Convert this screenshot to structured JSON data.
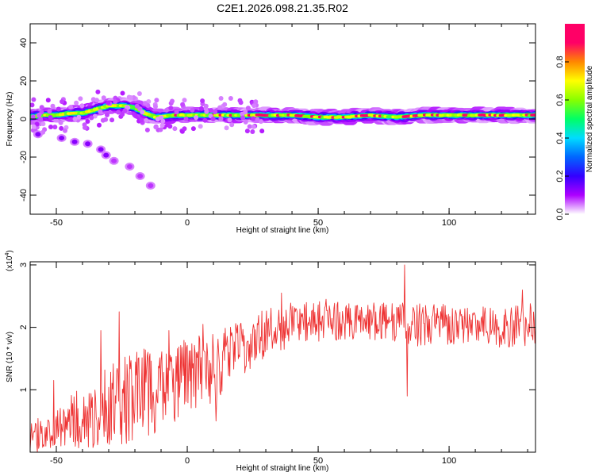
{
  "title": "C2E1.2026.098.21.35.R02",
  "chart_data": [
    {
      "type": "heatmap",
      "ylabel": "Frequency (Hz)",
      "xlabel": "Height of straight line (km)",
      "xlim": [
        -60,
        133
      ],
      "ylim": [
        -50,
        50
      ],
      "xticks": [
        -50,
        0,
        50,
        100
      ],
      "yticks": [
        40,
        20,
        0,
        -20,
        -40
      ],
      "ridge_knots": [
        [
          -60,
          1
        ],
        [
          -55,
          2
        ],
        [
          -50,
          2
        ],
        [
          -45,
          3
        ],
        [
          -40,
          3
        ],
        [
          -35,
          5
        ],
        [
          -30,
          7
        ],
        [
          -25,
          7
        ],
        [
          -20,
          6
        ],
        [
          -16,
          3
        ],
        [
          -12,
          1
        ],
        [
          -5,
          2
        ],
        [
          0,
          2
        ],
        [
          20,
          2
        ],
        [
          40,
          2
        ],
        [
          50,
          1
        ],
        [
          60,
          1
        ],
        [
          70,
          2
        ],
        [
          80,
          1
        ],
        [
          90,
          2
        ],
        [
          100,
          2
        ],
        [
          110,
          2
        ],
        [
          120,
          2
        ],
        [
          133,
          2
        ]
      ],
      "side_branch": [
        [
          -57,
          -8
        ],
        [
          -48,
          -10
        ],
        [
          -43,
          -12
        ],
        [
          -38,
          -13
        ],
        [
          -33,
          -16
        ],
        [
          -31,
          -19
        ],
        [
          -28,
          -22
        ],
        [
          -22,
          -25
        ],
        [
          -18,
          -30
        ],
        [
          -14,
          -35
        ]
      ],
      "colorbar": {
        "label": "Normalized spectral amplitude",
        "ticks": [
          "0.8",
          "0.6",
          "0.4",
          "0.2",
          "0.0"
        ],
        "range": [
          0,
          1
        ],
        "colors": [
          "#ffffff",
          "#ad00ff",
          "#3300ff",
          "#0066ff",
          "#00dcff",
          "#00ff66",
          "#88ff00",
          "#ffff00",
          "#ff8800",
          "#ff0066",
          "#ff0066"
        ]
      }
    },
    {
      "type": "line",
      "ylabel": "SNR (10 * v/v)",
      "xlabel": "Height of straight line (km)",
      "scale_label": "(x10",
      "scale_exp": "4",
      "xlim": [
        -60,
        133
      ],
      "ylim": [
        0,
        3.05
      ],
      "xticks": [
        -50,
        0,
        50,
        100
      ],
      "yticks": [
        3,
        2,
        1
      ],
      "line_color": "#ee3333",
      "trend_knots": [
        [
          -60,
          0.2
        ],
        [
          -50,
          0.4
        ],
        [
          -40,
          0.55
        ],
        [
          -30,
          0.8
        ],
        [
          -20,
          0.9
        ],
        [
          -10,
          1.0
        ],
        [
          0,
          1.25
        ],
        [
          10,
          1.35
        ],
        [
          20,
          1.65
        ],
        [
          30,
          1.9
        ],
        [
          40,
          2.05
        ],
        [
          50,
          2.1
        ],
        [
          60,
          2.1
        ],
        [
          70,
          2.1
        ],
        [
          80,
          2.1
        ],
        [
          90,
          2.05
        ],
        [
          100,
          2.05
        ],
        [
          110,
          2.05
        ],
        [
          120,
          2.0
        ],
        [
          133,
          2.05
        ]
      ],
      "spikes": [
        [
          -51,
          1.15
        ],
        [
          -33,
          1.95
        ],
        [
          -26,
          2.25
        ],
        [
          -15,
          1.6
        ],
        [
          -7,
          1.95
        ],
        [
          6,
          2.05
        ],
        [
          11,
          0.5
        ],
        [
          36,
          2.55
        ],
        [
          53,
          2.45
        ],
        [
          82,
          2.3
        ],
        [
          83,
          3.0
        ],
        [
          84,
          0.9
        ],
        [
          88,
          1.7
        ],
        [
          128,
          2.6
        ]
      ],
      "noise_amp": [
        [
          -60,
          0.25
        ],
        [
          -50,
          0.35
        ],
        [
          -40,
          0.5
        ],
        [
          -30,
          0.7
        ],
        [
          -20,
          0.75
        ],
        [
          -10,
          0.7
        ],
        [
          0,
          0.65
        ],
        [
          10,
          0.55
        ],
        [
          20,
          0.45
        ],
        [
          40,
          0.35
        ],
        [
          60,
          0.3
        ],
        [
          90,
          0.35
        ],
        [
          110,
          0.3
        ],
        [
          133,
          0.35
        ]
      ]
    }
  ]
}
